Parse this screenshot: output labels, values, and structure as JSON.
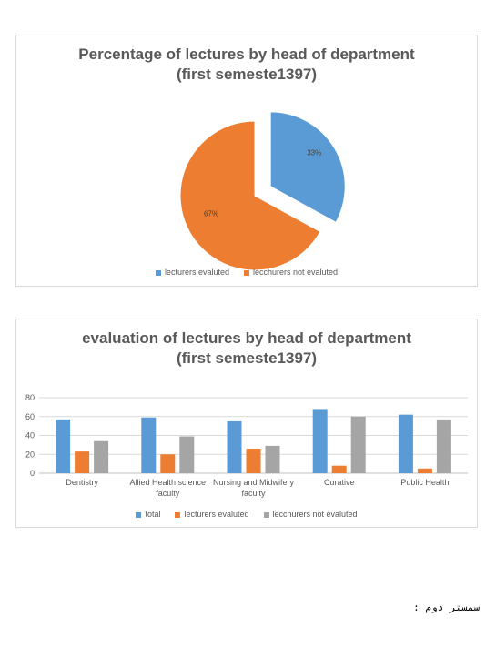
{
  "chart_data": [
    {
      "type": "pie",
      "title": "Percentage of lectures by head  of department",
      "subtitle": "(first  semeste1397)",
      "categories": [
        "lecturers evaluted",
        "lecchurers not evaluted"
      ],
      "values": [
        33,
        67
      ],
      "data_labels": [
        "33%",
        "67%"
      ],
      "colors": [
        "#5b9bd5",
        "#ed7d31"
      ],
      "legend_position": "bottom",
      "exploded_slice": 0
    },
    {
      "type": "bar",
      "title": "evaluation of lectures by head  of department",
      "subtitle": "(first semeste1397)",
      "categories": [
        "Dentistry",
        "Allied Health science faculty",
        "Nursing and Midwifery faculty",
        "Curative",
        "Public Health"
      ],
      "series": [
        {
          "name": "total",
          "values": [
            57,
            59,
            55,
            68,
            62
          ],
          "color": "#5b9bd5"
        },
        {
          "name": "lecturers evaluted",
          "values": [
            23,
            20,
            26,
            8,
            5
          ],
          "color": "#ed7d31"
        },
        {
          "name": "lecchurers not evaluted",
          "values": [
            34,
            39,
            29,
            60,
            57
          ],
          "color": "#a5a5a5"
        }
      ],
      "ylim": [
        0,
        80
      ],
      "yticks": [
        "0",
        "20",
        "40",
        "60",
        "80"
      ],
      "grid": true,
      "legend_position": "bottom"
    }
  ],
  "footer_note": "سمستر دوم :"
}
